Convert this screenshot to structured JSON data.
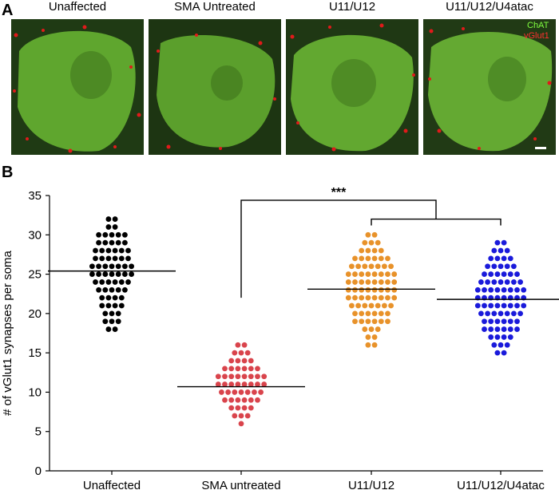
{
  "panel_labels": {
    "a": "A",
    "b": "B"
  },
  "micrographs": [
    {
      "title": "Unaffected"
    },
    {
      "title": "SMA Untreated"
    },
    {
      "title": "U11/U12"
    },
    {
      "title": "U11/U12/U4atac"
    }
  ],
  "legend": {
    "chat": "ChAT",
    "vglut1": "vGlut1"
  },
  "colors": {
    "unaffected": "#000000",
    "sma_untreated": "#d9444c",
    "u11u12": "#e8922a",
    "u11u12u4atac": "#1a1adb",
    "chat_green": "#6ab82e",
    "vglut_red": "#e0221a"
  },
  "significance": "***",
  "chart_data": {
    "type": "scatter",
    "title": "",
    "xlabel": "",
    "ylabel": "# of vGlut1 synapses per soma",
    "ylim": [
      0,
      35
    ],
    "yticks": [
      0,
      5,
      10,
      15,
      20,
      25,
      30,
      35
    ],
    "categories": [
      "Unaffected",
      "SMA untreated",
      "U11/U12",
      "U11/U12/U4atac"
    ],
    "series": [
      {
        "category": "Unaffected",
        "mean": 25.4,
        "counts": {
          "18": 2,
          "19": 3,
          "20": 3,
          "21": 4,
          "22": 4,
          "23": 5,
          "24": 6,
          "25": 7,
          "26": 7,
          "27": 6,
          "28": 6,
          "29": 5,
          "30": 5,
          "31": 2,
          "32": 2
        }
      },
      {
        "category": "SMA untreated",
        "mean": 10.7,
        "counts": {
          "6": 1,
          "7": 3,
          "8": 4,
          "9": 6,
          "10": 7,
          "11": 8,
          "12": 8,
          "13": 6,
          "14": 4,
          "15": 3,
          "16": 2
        }
      },
      {
        "category": "U11/U12",
        "mean": 23.1,
        "counts": {
          "16": 2,
          "17": 2,
          "18": 3,
          "19": 6,
          "20": 6,
          "21": 7,
          "22": 8,
          "23": 8,
          "24": 8,
          "25": 8,
          "26": 7,
          "27": 6,
          "28": 4,
          "29": 3,
          "30": 2
        }
      },
      {
        "category": "U11/U12/U4atac",
        "mean": 21.8,
        "counts": {
          "15": 2,
          "16": 3,
          "17": 4,
          "18": 6,
          "19": 6,
          "20": 7,
          "21": 8,
          "22": 8,
          "23": 8,
          "24": 7,
          "25": 6,
          "26": 5,
          "27": 4,
          "28": 3,
          "29": 2
        }
      }
    ]
  }
}
